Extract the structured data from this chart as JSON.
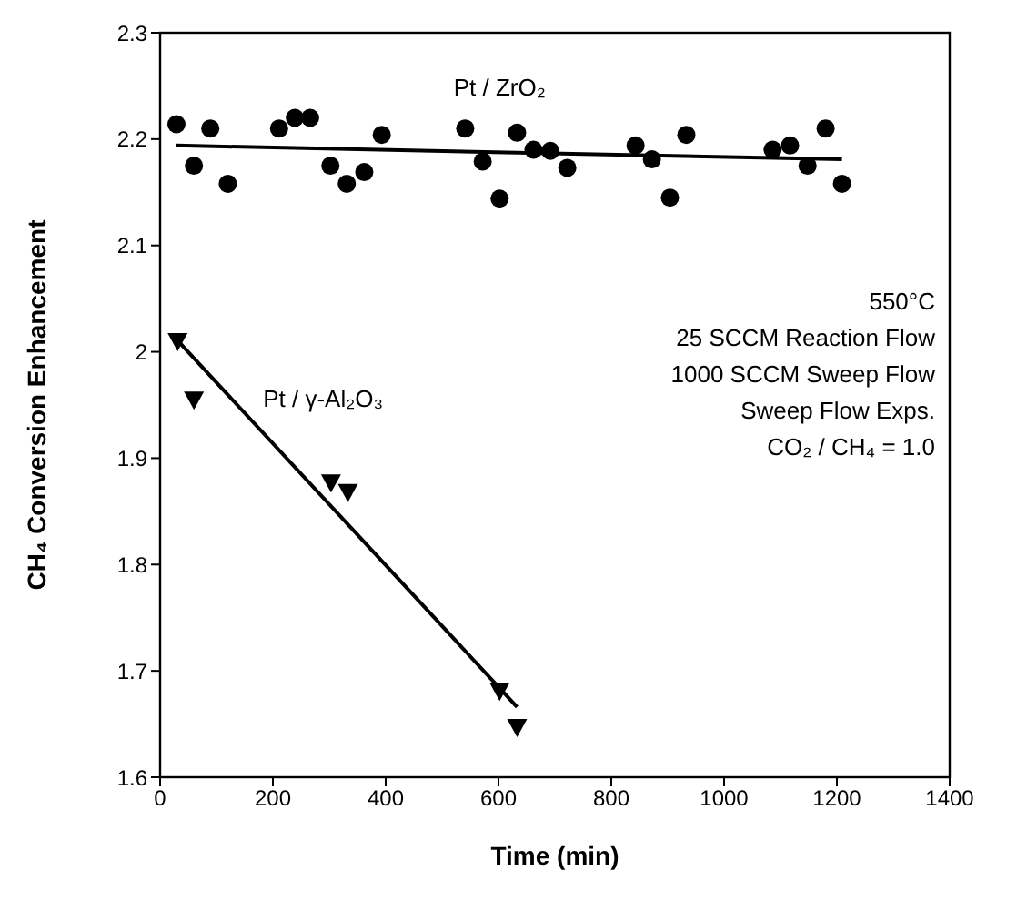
{
  "chart_data": {
    "type": "scatter",
    "xlabel": "Time (min)",
    "ylabel": "CH₄ Conversion Enhancement",
    "xlim": [
      0,
      1400
    ],
    "xticks": [
      0,
      200,
      400,
      600,
      800,
      1000,
      1200,
      1400
    ],
    "ylim": [
      1.6,
      2.3
    ],
    "yticks": [
      1.6,
      1.7,
      1.8,
      1.9,
      2,
      2.1,
      2.2,
      2.3
    ],
    "annotations": [
      "550°C",
      "25 SCCM Reaction Flow",
      "1000 SCCM Sweep Flow",
      "Sweep Flow Exps.",
      "CO₂ / CH₄ = 1.0"
    ],
    "series": [
      {
        "name": "Pt / ZrO₂",
        "marker": "circle",
        "color": "#000000",
        "x": [
          29,
          60,
          89,
          120,
          211,
          239,
          266,
          302,
          331,
          362,
          393,
          541,
          572,
          602,
          633,
          662,
          692,
          722,
          843,
          872,
          904,
          933,
          1086,
          1117,
          1148,
          1180,
          1209
        ],
        "values": [
          2.214,
          2.175,
          2.21,
          2.158,
          2.21,
          2.22,
          2.22,
          2.175,
          2.158,
          2.169,
          2.204,
          2.21,
          2.179,
          2.144,
          2.206,
          2.19,
          2.189,
          2.173,
          2.194,
          2.181,
          2.145,
          2.204,
          2.19,
          2.194,
          2.175,
          2.21,
          2.158
        ]
      },
      {
        "name": "Pt / γ-Al₂O₃",
        "marker": "triangle",
        "color": "#000000",
        "x": [
          31,
          60,
          303,
          333,
          602,
          633
        ],
        "values": [
          2.01,
          1.955,
          1.877,
          1.868,
          1.681,
          1.647
        ]
      },
      {
        "type": "line",
        "marker": "none",
        "color": "#000000",
        "x": [
          29,
          1209
        ],
        "values": [
          2.194,
          2.181
        ]
      },
      {
        "type": "line",
        "marker": "none",
        "color": "#000000",
        "x": [
          25,
          633
        ],
        "values": [
          2.014,
          1.666
        ]
      }
    ]
  }
}
